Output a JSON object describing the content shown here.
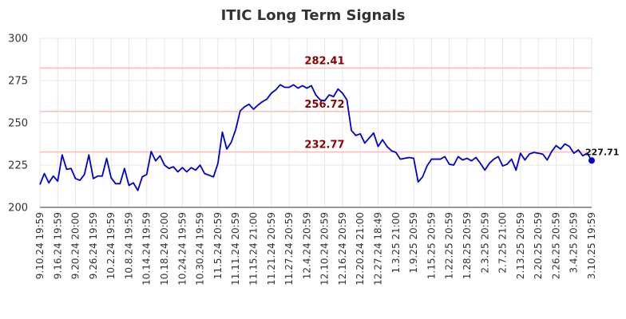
{
  "chart_data": {
    "type": "line",
    "title": "ITIC Long Term Signals",
    "xlabel": "",
    "ylabel": "",
    "ylim": [
      200,
      300
    ],
    "yticks": [
      200,
      225,
      250,
      275,
      300
    ],
    "grid": true,
    "legend": "none",
    "colors": {
      "line": "#0000cc",
      "levels": "#ffbcbc",
      "level_labels": "#8b0000",
      "last_point": "#0000cc"
    },
    "x_tick_labels": [
      "9.10.24 19:59",
      "9.16.24 19:59",
      "9.20.24 20:00",
      "9.26.24 19:59",
      "10.2.24 19:59",
      "10.8.24 19:59",
      "10.14.24 19:59",
      "10.18.24 20:00",
      "10.24.24 19:59",
      "10.30.24 19:59",
      "11.5.24 20:59",
      "11.11.24 20:59",
      "11.15.24 21:00",
      "11.21.24 20:59",
      "11.27.24 20:59",
      "12.4.24 20:59",
      "12.10.24 20:59",
      "12.16.24 20:59",
      "12.20.24 21:00",
      "12.27.24 18:49",
      "1.3.25 21:00",
      "1.9.25 20:59",
      "1.15.25 20:59",
      "1.22.25 20:59",
      "1.28.25 20:59",
      "2.3.25 20:59",
      "2.7.25 21:00",
      "2.13.25 20:59",
      "2.20.25 20:59",
      "2.26.25 20:59",
      "3.4.25 20:59",
      "3.10.25 19:59"
    ],
    "horizontal_levels": [
      {
        "value": 282.41,
        "label": "282.41"
      },
      {
        "value": 256.72,
        "label": "256.72"
      },
      {
        "value": 232.77,
        "label": "232.77"
      }
    ],
    "last_value_label": "227.71",
    "series": [
      {
        "values": [
          213.5,
          220.0,
          214.5,
          218.5,
          215.5,
          231.0,
          222.5,
          223.0,
          217.0,
          216.0,
          219.5,
          231.0,
          217.0,
          218.5,
          218.5,
          229.0,
          217.5,
          214.0,
          214.0,
          223.0,
          213.0,
          214.5,
          210.0,
          218.0,
          219.5,
          233.0,
          227.5,
          230.5,
          225.0,
          223.0,
          224.0,
          221.0,
          223.5,
          221.0,
          223.5,
          222.0,
          225.0,
          220.0,
          219.0,
          218.0,
          226.0,
          244.5,
          234.5,
          238.5,
          246.0,
          257.0,
          259.5,
          261.0,
          258.0,
          260.5,
          262.5,
          264.0,
          267.5,
          269.5,
          272.5,
          271.0,
          271.0,
          272.5,
          270.5,
          272.0,
          270.5,
          272.0,
          266.5,
          263.5,
          263.0,
          266.5,
          265.5,
          270.0,
          267.5,
          263.5,
          245.5,
          242.5,
          243.5,
          238.0,
          241.0,
          244.0,
          236.0,
          240.0,
          236.0,
          233.5,
          232.5,
          228.5,
          229.0,
          229.5,
          229.0,
          215.0,
          218.0,
          224.5,
          228.5,
          228.5,
          228.5,
          230.0,
          225.5,
          225.0,
          230.0,
          228.0,
          229.0,
          227.5,
          229.5,
          226.0,
          222.0,
          226.0,
          228.5,
          230.0,
          224.5,
          225.5,
          228.5,
          222.0,
          232.0,
          228.0,
          231.5,
          232.5,
          232.0,
          231.5,
          228.0,
          233.0,
          236.5,
          234.5,
          237.5,
          236.0,
          232.0,
          234.0,
          230.5,
          232.0,
          227.71
        ]
      }
    ]
  }
}
